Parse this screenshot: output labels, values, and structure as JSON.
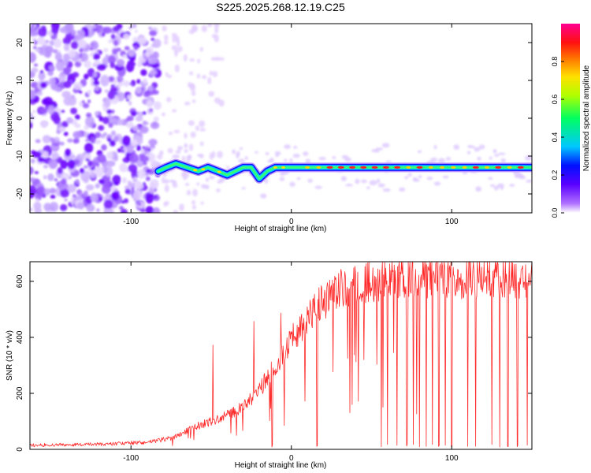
{
  "title": "S225.2025.268.12.19.C25",
  "chart_data": [
    {
      "type": "heatmap",
      "name": "spectrogram",
      "xlabel": "Height of straight line (km)",
      "ylabel": "Frequency (Hz)",
      "xlim": [
        -163,
        150
      ],
      "ylim": [
        -25,
        25
      ],
      "xticks": [
        {
          "value": -100,
          "label": "-100"
        },
        {
          "value": 0,
          "label": "0"
        },
        {
          "value": 100,
          "label": "100"
        }
      ],
      "yticks": [
        {
          "value": 20,
          "label": "20"
        },
        {
          "value": 10,
          "label": "10"
        },
        {
          "value": 0,
          "label": "0"
        },
        {
          "value": -10,
          "label": "-10"
        },
        {
          "value": -20,
          "label": "-20"
        }
      ],
      "signal_track": {
        "x": [
          -83,
          -78,
          -72,
          -65,
          -58,
          -52,
          -46,
          -40,
          -35,
          -30,
          -25,
          -20,
          -15,
          -10,
          -5,
          0,
          10,
          30,
          60,
          90,
          120,
          150
        ],
        "frequency": [
          -14,
          -13,
          -12,
          -13,
          -14,
          -13,
          -14,
          -15,
          -14,
          -13,
          -13,
          -16,
          -14,
          -13,
          -13,
          -13,
          -13,
          -13,
          -13,
          -13,
          -13,
          -13
        ]
      },
      "noise_region_end": -83,
      "colorbar": {
        "label": "Normalized spectral amplitude",
        "range": [
          0,
          1
        ],
        "ticks": [
          {
            "value": 0.0,
            "label": "0.0"
          },
          {
            "value": 0.2,
            "label": "0.2"
          },
          {
            "value": 0.4,
            "label": "0.4"
          },
          {
            "value": 0.6,
            "label": "0.6"
          },
          {
            "value": 0.8,
            "label": "0.8"
          }
        ],
        "colors": [
          "#ffffff",
          "#7a00ff",
          "#0000ff",
          "#00ffff",
          "#00ff00",
          "#ffff00",
          "#ff8000",
          "#ff0000",
          "#ff00a0"
        ]
      }
    },
    {
      "type": "line",
      "name": "snr",
      "xlabel": "Height of straight line (km)",
      "ylabel": "SNR (10 * v/v)",
      "xlim": [
        -163,
        150
      ],
      "ylim": [
        0,
        670
      ],
      "color": "#ff2a2a",
      "xticks": [
        {
          "value": -100,
          "label": "-100"
        },
        {
          "value": 0,
          "label": "0"
        },
        {
          "value": 100,
          "label": "100"
        }
      ],
      "yticks": [
        {
          "value": 0,
          "label": "0"
        },
        {
          "value": 200,
          "label": "200"
        },
        {
          "value": 400,
          "label": "400"
        },
        {
          "value": 600,
          "label": "600"
        }
      ],
      "envelope": {
        "x": [
          -163,
          -120,
          -90,
          -75,
          -60,
          -45,
          -30,
          -20,
          -10,
          0,
          10,
          20,
          30,
          40,
          50,
          60,
          80,
          100,
          150
        ],
        "y": [
          15,
          18,
          25,
          40,
          80,
          110,
          150,
          210,
          300,
          390,
          470,
          530,
          570,
          590,
          600,
          610,
          615,
          615,
          615
        ]
      },
      "dropouts_x": [
        -12,
        16,
        56,
        60,
        66,
        72,
        76,
        80,
        84,
        88,
        92,
        96,
        100,
        110,
        115,
        125,
        130,
        135,
        141,
        147
      ]
    }
  ]
}
